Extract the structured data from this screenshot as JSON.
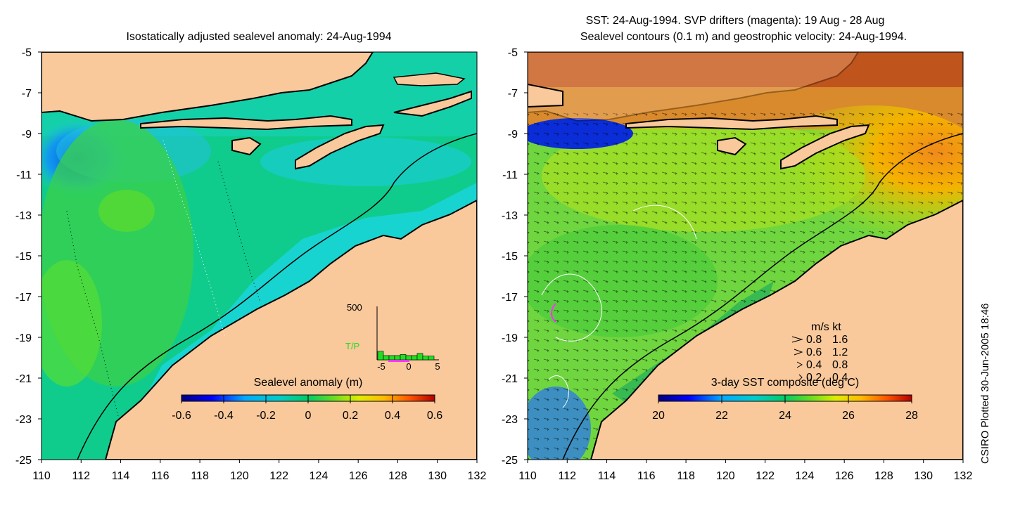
{
  "left_panel": {
    "title": "Isostatically adjusted sealevel anomaly: 24-Aug-1994",
    "colorbar": {
      "label": "Sealevel anomaly (m)",
      "ticks": [
        "-0.6",
        "-0.4",
        "-0.2",
        "0",
        "0.2",
        "0.4",
        "0.6"
      ],
      "range": [
        -0.6,
        0.6
      ]
    },
    "histogram": {
      "ymax_label": "500",
      "series_label": "T/P",
      "x_ticks": [
        "-5",
        "0",
        "5"
      ],
      "bars": [
        0.16,
        0.08,
        0.08,
        0.08,
        0.1,
        0.08,
        0.08,
        0.12,
        0.07,
        0.07
      ],
      "color": "#22dd22",
      "marker_color": "#ff33ff"
    }
  },
  "right_panel": {
    "title_line1": "SST: 24-Aug-1994. SVP drifters (magenta): 19 Aug - 28 Aug",
    "title_line2": "Sealevel contours (0.1 m) and geostrophic velocity: 24-Aug-1994.",
    "colorbar": {
      "label": "3-day SST composite (deg C)",
      "ticks": [
        "20",
        "22",
        "24",
        "26",
        "28"
      ],
      "range": [
        20,
        28
      ]
    },
    "velocity_legend": {
      "header": "m/s  kt",
      "rows": [
        {
          "ms": "0.8",
          "kt": "1.6"
        },
        {
          "ms": "0.6",
          "kt": "1.2"
        },
        {
          "ms": "0.4",
          "kt": "0.8"
        },
        {
          "ms": "0.2",
          "kt": "0.4"
        }
      ]
    }
  },
  "axes": {
    "x_ticks": [
      "110",
      "112",
      "114",
      "116",
      "118",
      "120",
      "122",
      "124",
      "126",
      "128",
      "130",
      "132"
    ],
    "y_ticks": [
      "-5",
      "-7",
      "-9",
      "-11",
      "-13",
      "-15",
      "-17",
      "-19",
      "-21",
      "-23",
      "-25"
    ],
    "lon_range": [
      110,
      132
    ],
    "lat_range": [
      -25,
      -5
    ]
  },
  "credit": "CSIRO Plotted 30-Jun-2005 18:46",
  "colors": {
    "land": "#f9c89b",
    "colormap": [
      "#00007f",
      "#0000ff",
      "#00aaff",
      "#00dddd",
      "#00cc66",
      "#33dd33",
      "#aaee00",
      "#ffee00",
      "#ffaa00",
      "#ff5500",
      "#b40000"
    ]
  }
}
